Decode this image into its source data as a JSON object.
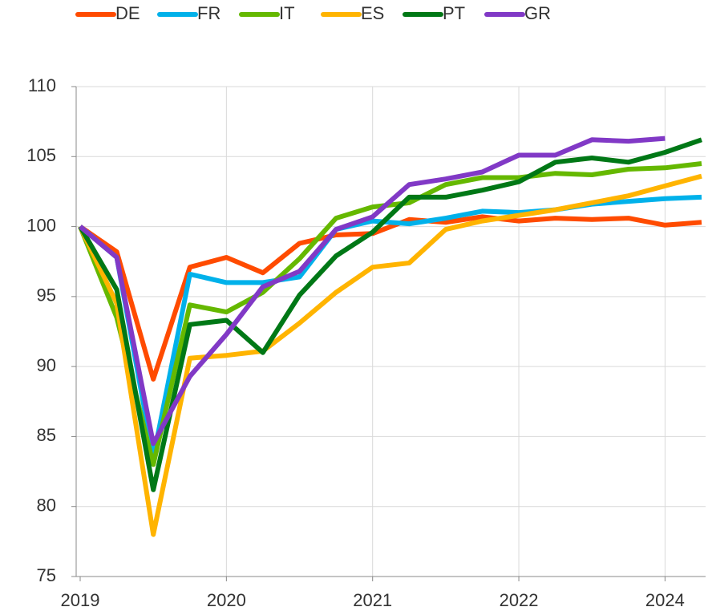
{
  "chart_data": {
    "type": "line",
    "categories": [
      "2019",
      null,
      null,
      null,
      "2020",
      null,
      null,
      null,
      "2021",
      null,
      null,
      null,
      "2022",
      null,
      null,
      null,
      "2024",
      null
    ],
    "series": [
      {
        "name": "DE",
        "color": "#ff4b00",
        "values": [
          100,
          98.2,
          89.1,
          97.1,
          97.8,
          96.7,
          98.8,
          99.4,
          99.5,
          100.5,
          100.3,
          100.7,
          100.4,
          100.6,
          100.5,
          100.6,
          100.1,
          100.3
        ]
      },
      {
        "name": "FR",
        "color": "#00b1ea",
        "values": [
          100,
          97.8,
          83.5,
          96.6,
          96.0,
          96.0,
          96.4,
          99.8,
          100.4,
          100.2,
          100.6,
          101.1,
          101.0,
          101.2,
          101.6,
          101.8,
          102.0,
          102.1
        ]
      },
      {
        "name": "IT",
        "color": "#65b800",
        "values": [
          100,
          93.5,
          83.0,
          94.4,
          93.9,
          95.3,
          97.7,
          100.6,
          101.4,
          101.7,
          103.0,
          103.5,
          103.5,
          103.8,
          103.7,
          104.1,
          104.2,
          104.5
        ]
      },
      {
        "name": "ES",
        "color": "#ffb400",
        "values": [
          100,
          94.5,
          78.0,
          90.6,
          90.8,
          91.1,
          93.1,
          95.3,
          97.1,
          97.4,
          99.8,
          100.4,
          100.8,
          101.2,
          101.7,
          102.2,
          102.9,
          103.6
        ]
      },
      {
        "name": "PT",
        "color": "#007816",
        "values": [
          100,
          95.5,
          81.2,
          93.0,
          93.3,
          91.0,
          95.1,
          97.9,
          99.6,
          102.1,
          102.1,
          102.6,
          103.2,
          104.6,
          104.9,
          104.6,
          105.3,
          106.2
        ]
      },
      {
        "name": "GR",
        "color": "#8139c6",
        "values": [
          100,
          97.8,
          84.5,
          89.3,
          92.3,
          95.7,
          96.8,
          99.8,
          100.7,
          103.0,
          103.4,
          103.9,
          105.1,
          105.1,
          106.2,
          106.1,
          106.3,
          null
        ]
      }
    ],
    "ylim": [
      75,
      110
    ],
    "yticks": [
      75,
      80,
      85,
      90,
      95,
      100,
      105,
      110
    ],
    "grid": true,
    "legend": "top"
  }
}
